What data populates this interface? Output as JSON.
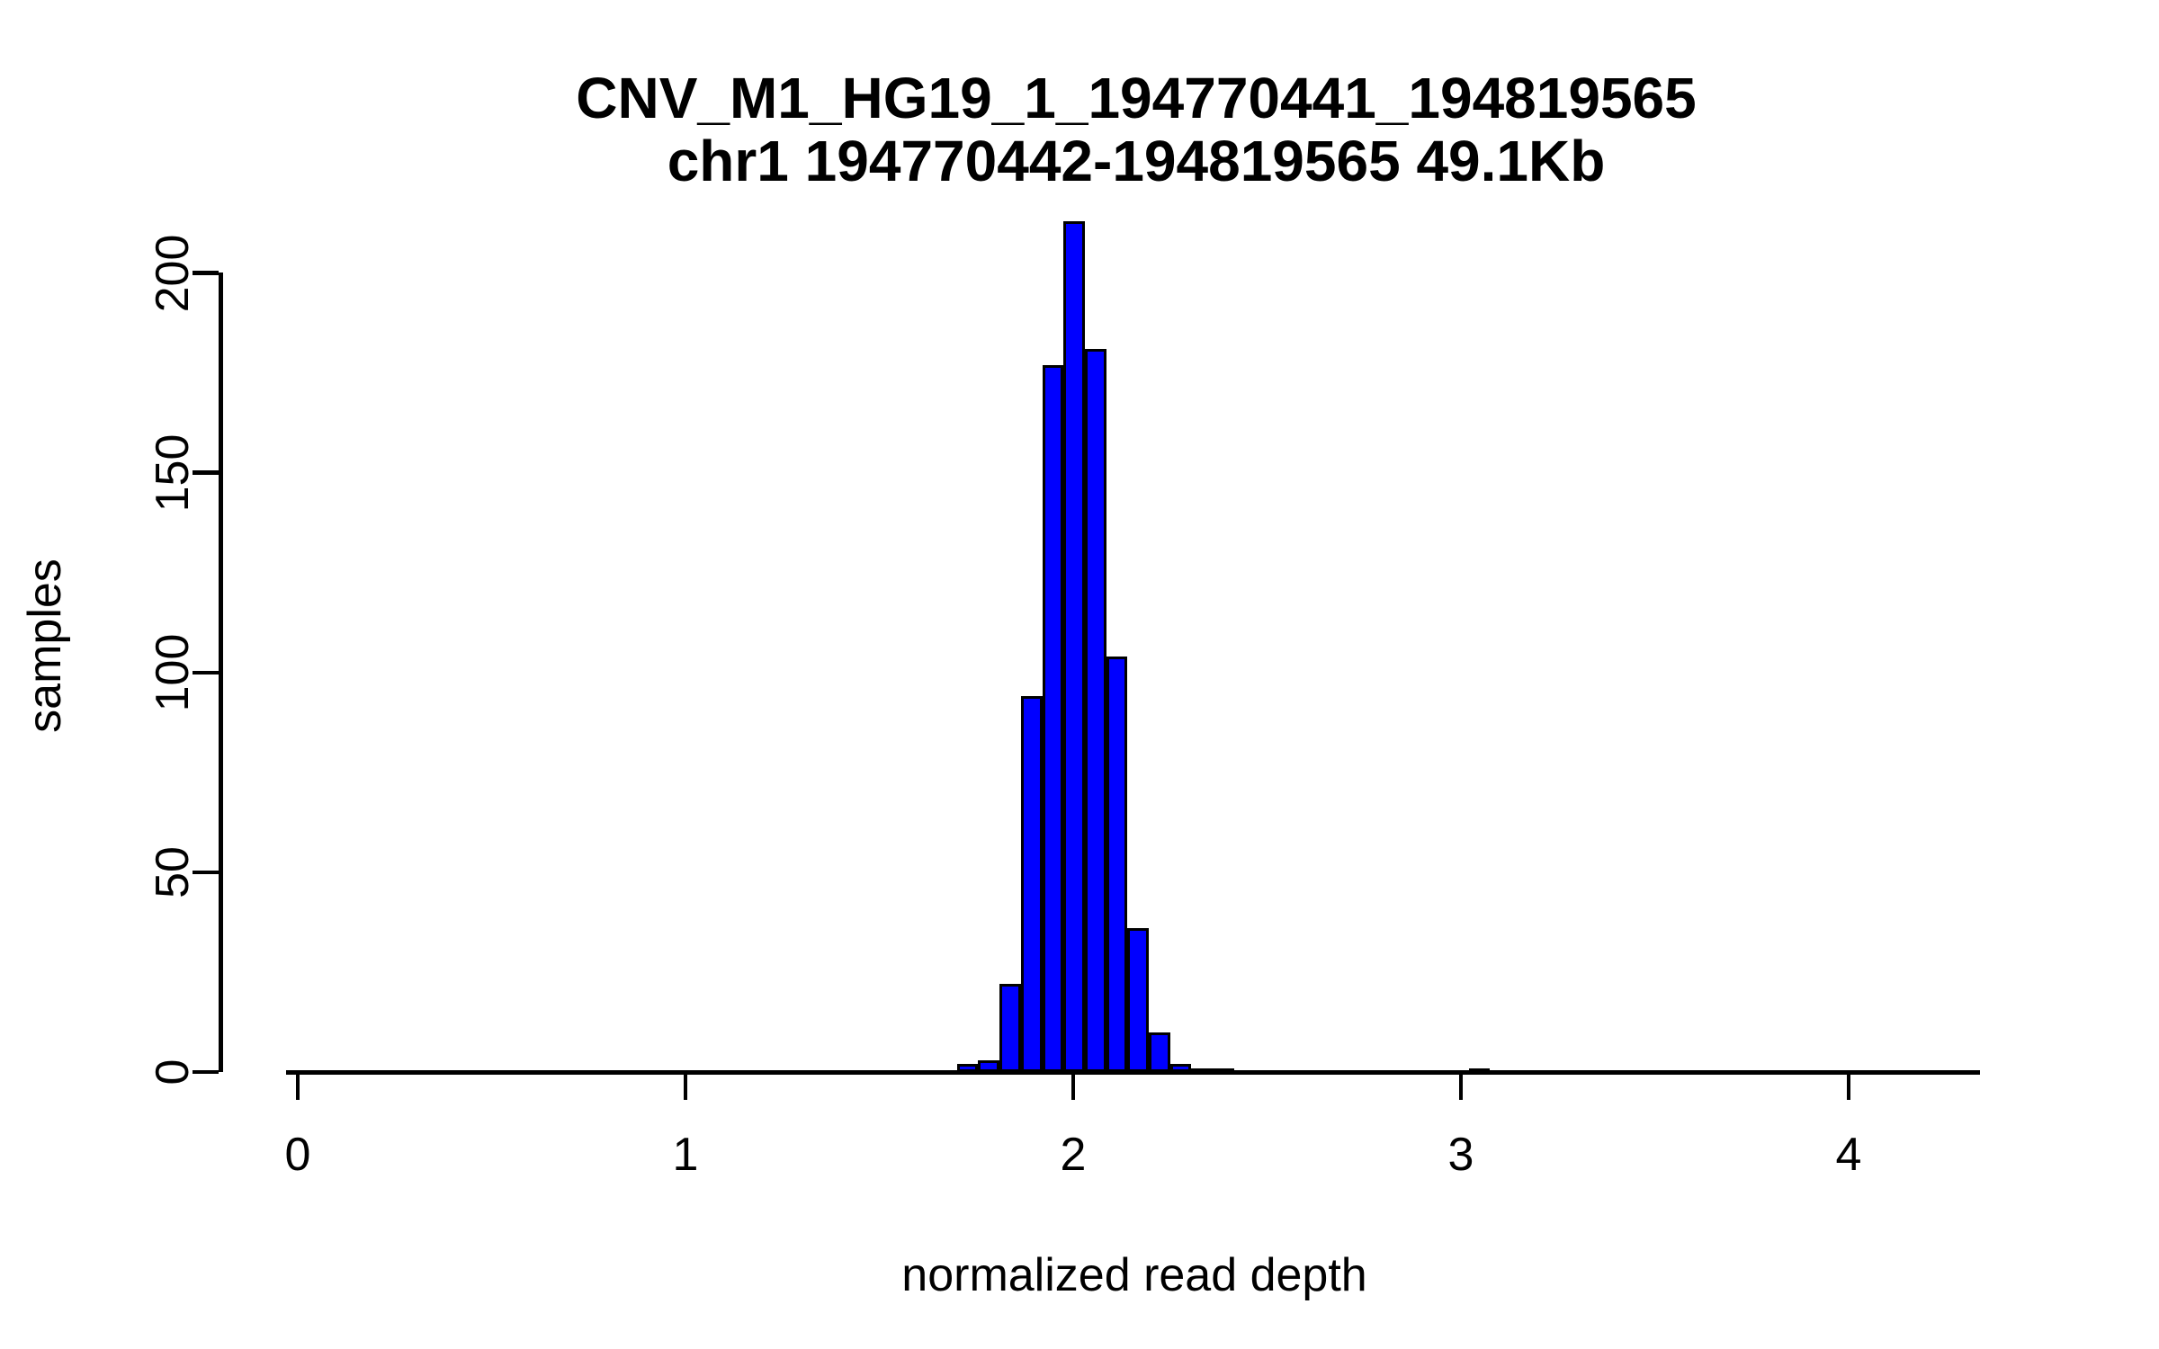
{
  "title": {
    "line1": "CNV_M1_HG19_1_194770441_194819565",
    "line2": "chr1 194770442-194819565 49.1Kb"
  },
  "colors": {
    "bar_fill": "#0000FF",
    "bar_border": "#000000",
    "outlier_fill": "#A00000",
    "axis": "#000000",
    "background": "#FFFFFF"
  },
  "chart_data": {
    "type": "bar",
    "subtype": "histogram",
    "title": "CNV_M1_HG19_1_194770441_194819565",
    "subtitle": "chr1 194770442-194819565 49.1Kb",
    "xlabel": "normalized read depth",
    "ylabel": "samples",
    "x_ticks": [
      0,
      1,
      2,
      3,
      4
    ],
    "y_ticks": [
      0,
      50,
      100,
      150,
      200
    ],
    "xlim": [
      -0.03,
      4.34
    ],
    "ylim": [
      0,
      213
    ],
    "grid": "off",
    "legend": "none",
    "bin_start": 1.7,
    "bin_width": 0.055,
    "counts": [
      2,
      3,
      22,
      94,
      177,
      213,
      181,
      104,
      36,
      10,
      2,
      1,
      1
    ],
    "outlier_bin": {
      "from": 3.02,
      "to": 3.075,
      "count": 1
    }
  }
}
